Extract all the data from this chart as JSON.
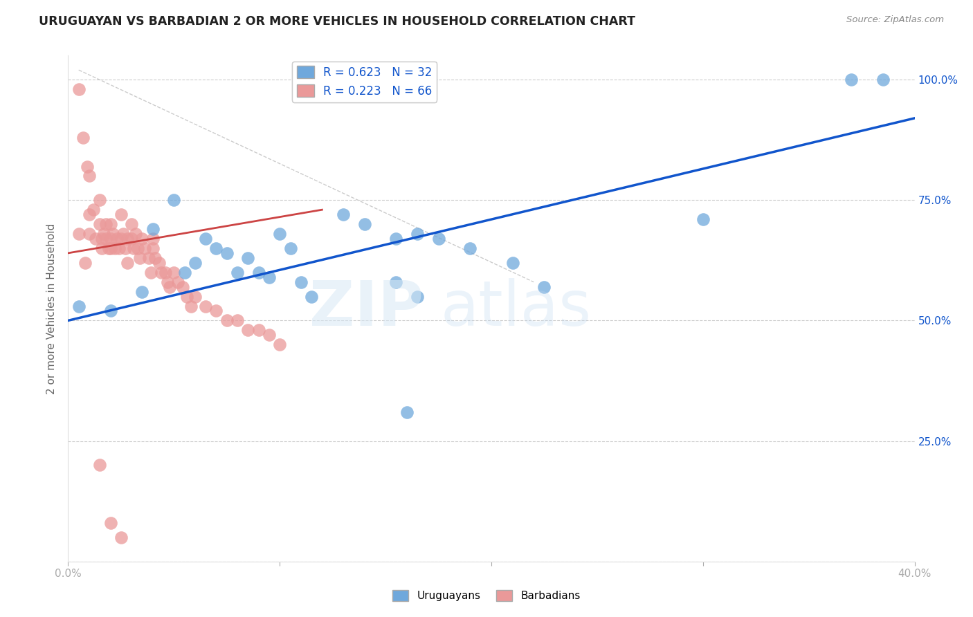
{
  "title": "URUGUAYAN VS BARBADIAN 2 OR MORE VEHICLES IN HOUSEHOLD CORRELATION CHART",
  "source": "Source: ZipAtlas.com",
  "ylabel": "2 or more Vehicles in Household",
  "xlim": [
    0.0,
    0.4
  ],
  "ylim": [
    0.0,
    1.05
  ],
  "blue_color": "#6fa8dc",
  "pink_color": "#ea9999",
  "blue_line_color": "#1155cc",
  "pink_line_color": "#cc4444",
  "legend_blue_label": "R = 0.623   N = 32",
  "legend_pink_label": "R = 0.223   N = 66",
  "legend_uruguayans": "Uruguayans",
  "legend_barbadians": "Barbadians",
  "blue_x": [
    0.005,
    0.02,
    0.035,
    0.04,
    0.05,
    0.055,
    0.06,
    0.065,
    0.07,
    0.075,
    0.08,
    0.085,
    0.09,
    0.095,
    0.1,
    0.105,
    0.11,
    0.115,
    0.13,
    0.14,
    0.155,
    0.165,
    0.175,
    0.19,
    0.21,
    0.225,
    0.155,
    0.3,
    0.37,
    0.385,
    0.16,
    0.165
  ],
  "blue_y": [
    0.53,
    0.52,
    0.56,
    0.69,
    0.75,
    0.6,
    0.62,
    0.67,
    0.65,
    0.64,
    0.6,
    0.63,
    0.6,
    0.59,
    0.68,
    0.65,
    0.58,
    0.55,
    0.72,
    0.7,
    0.67,
    0.68,
    0.67,
    0.65,
    0.62,
    0.57,
    0.58,
    0.71,
    1.0,
    1.0,
    0.31,
    0.55
  ],
  "pink_x": [
    0.005,
    0.008,
    0.01,
    0.01,
    0.01,
    0.012,
    0.013,
    0.015,
    0.015,
    0.016,
    0.016,
    0.017,
    0.018,
    0.018,
    0.019,
    0.02,
    0.02,
    0.02,
    0.021,
    0.022,
    0.023,
    0.024,
    0.025,
    0.025,
    0.026,
    0.027,
    0.028,
    0.028,
    0.03,
    0.03,
    0.031,
    0.032,
    0.033,
    0.034,
    0.035,
    0.036,
    0.038,
    0.039,
    0.04,
    0.04,
    0.041,
    0.043,
    0.044,
    0.046,
    0.047,
    0.048,
    0.05,
    0.052,
    0.054,
    0.056,
    0.058,
    0.06,
    0.065,
    0.07,
    0.075,
    0.08,
    0.085,
    0.09,
    0.095,
    0.1,
    0.005,
    0.007,
    0.009,
    0.015,
    0.02,
    0.025
  ],
  "pink_y": [
    0.68,
    0.62,
    0.8,
    0.72,
    0.68,
    0.73,
    0.67,
    0.75,
    0.7,
    0.67,
    0.65,
    0.68,
    0.7,
    0.67,
    0.65,
    0.7,
    0.67,
    0.65,
    0.68,
    0.65,
    0.67,
    0.65,
    0.72,
    0.67,
    0.68,
    0.65,
    0.67,
    0.62,
    0.7,
    0.67,
    0.65,
    0.68,
    0.65,
    0.63,
    0.67,
    0.65,
    0.63,
    0.6,
    0.67,
    0.65,
    0.63,
    0.62,
    0.6,
    0.6,
    0.58,
    0.57,
    0.6,
    0.58,
    0.57,
    0.55,
    0.53,
    0.55,
    0.53,
    0.52,
    0.5,
    0.5,
    0.48,
    0.48,
    0.47,
    0.45,
    0.98,
    0.88,
    0.82,
    0.2,
    0.08,
    0.05
  ],
  "ref_line_x": [
    0.005,
    0.22
  ],
  "ref_line_y": [
    1.02,
    0.58
  ]
}
